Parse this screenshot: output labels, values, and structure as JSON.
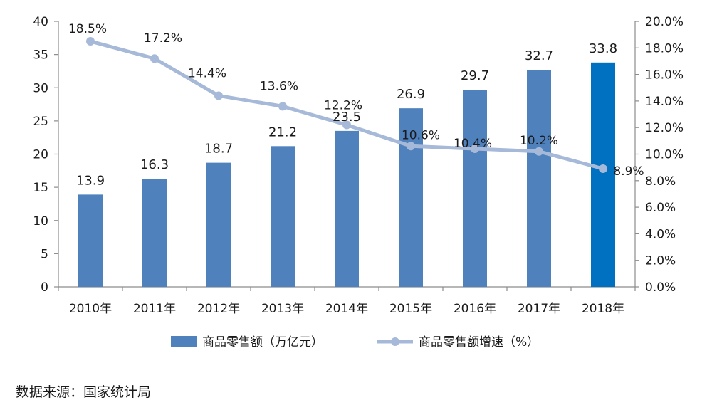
{
  "chart_data": {
    "type": "bar",
    "categories": [
      "2010年",
      "2011年",
      "2012年",
      "2013年",
      "2014年",
      "2015年",
      "2016年",
      "2017年",
      "2018年"
    ],
    "series": [
      {
        "name": "商品零售额（万亿元）",
        "type": "bar",
        "axis": "left",
        "values": [
          13.9,
          16.3,
          18.7,
          21.2,
          23.5,
          26.9,
          29.7,
          32.7,
          33.8
        ],
        "value_labels": [
          "13.9",
          "16.3",
          "18.7",
          "21.2",
          "23.5",
          "26.9",
          "29.7",
          "32.7",
          "33.8"
        ],
        "color": "#4f81bd",
        "highlight_color": "#0070c0"
      },
      {
        "name": "商品零售额增速（%）",
        "type": "line",
        "axis": "right",
        "values": [
          18.5,
          17.2,
          14.4,
          13.6,
          12.2,
          10.6,
          10.4,
          10.2,
          8.9
        ],
        "value_labels": [
          "18.5%",
          "17.2%",
          "14.4%",
          "13.6%",
          "12.2%",
          "10.6%",
          "10.4%",
          "10.2%",
          "8.9%"
        ],
        "color": "#a6b9d8"
      }
    ],
    "y_left": {
      "ylim": [
        0,
        40
      ],
      "ticks": [
        "0",
        "5",
        "10",
        "15",
        "20",
        "25",
        "30",
        "35",
        "40"
      ]
    },
    "y_right": {
      "ylim": [
        0,
        20
      ],
      "ticks": [
        "0.0%",
        "2.0%",
        "4.0%",
        "6.0%",
        "8.0%",
        "10.0%",
        "12.0%",
        "14.0%",
        "16.0%",
        "18.0%",
        "20.0%"
      ]
    },
    "grid": false,
    "legend": "bottom"
  },
  "source": "数据来源：国家统计局"
}
